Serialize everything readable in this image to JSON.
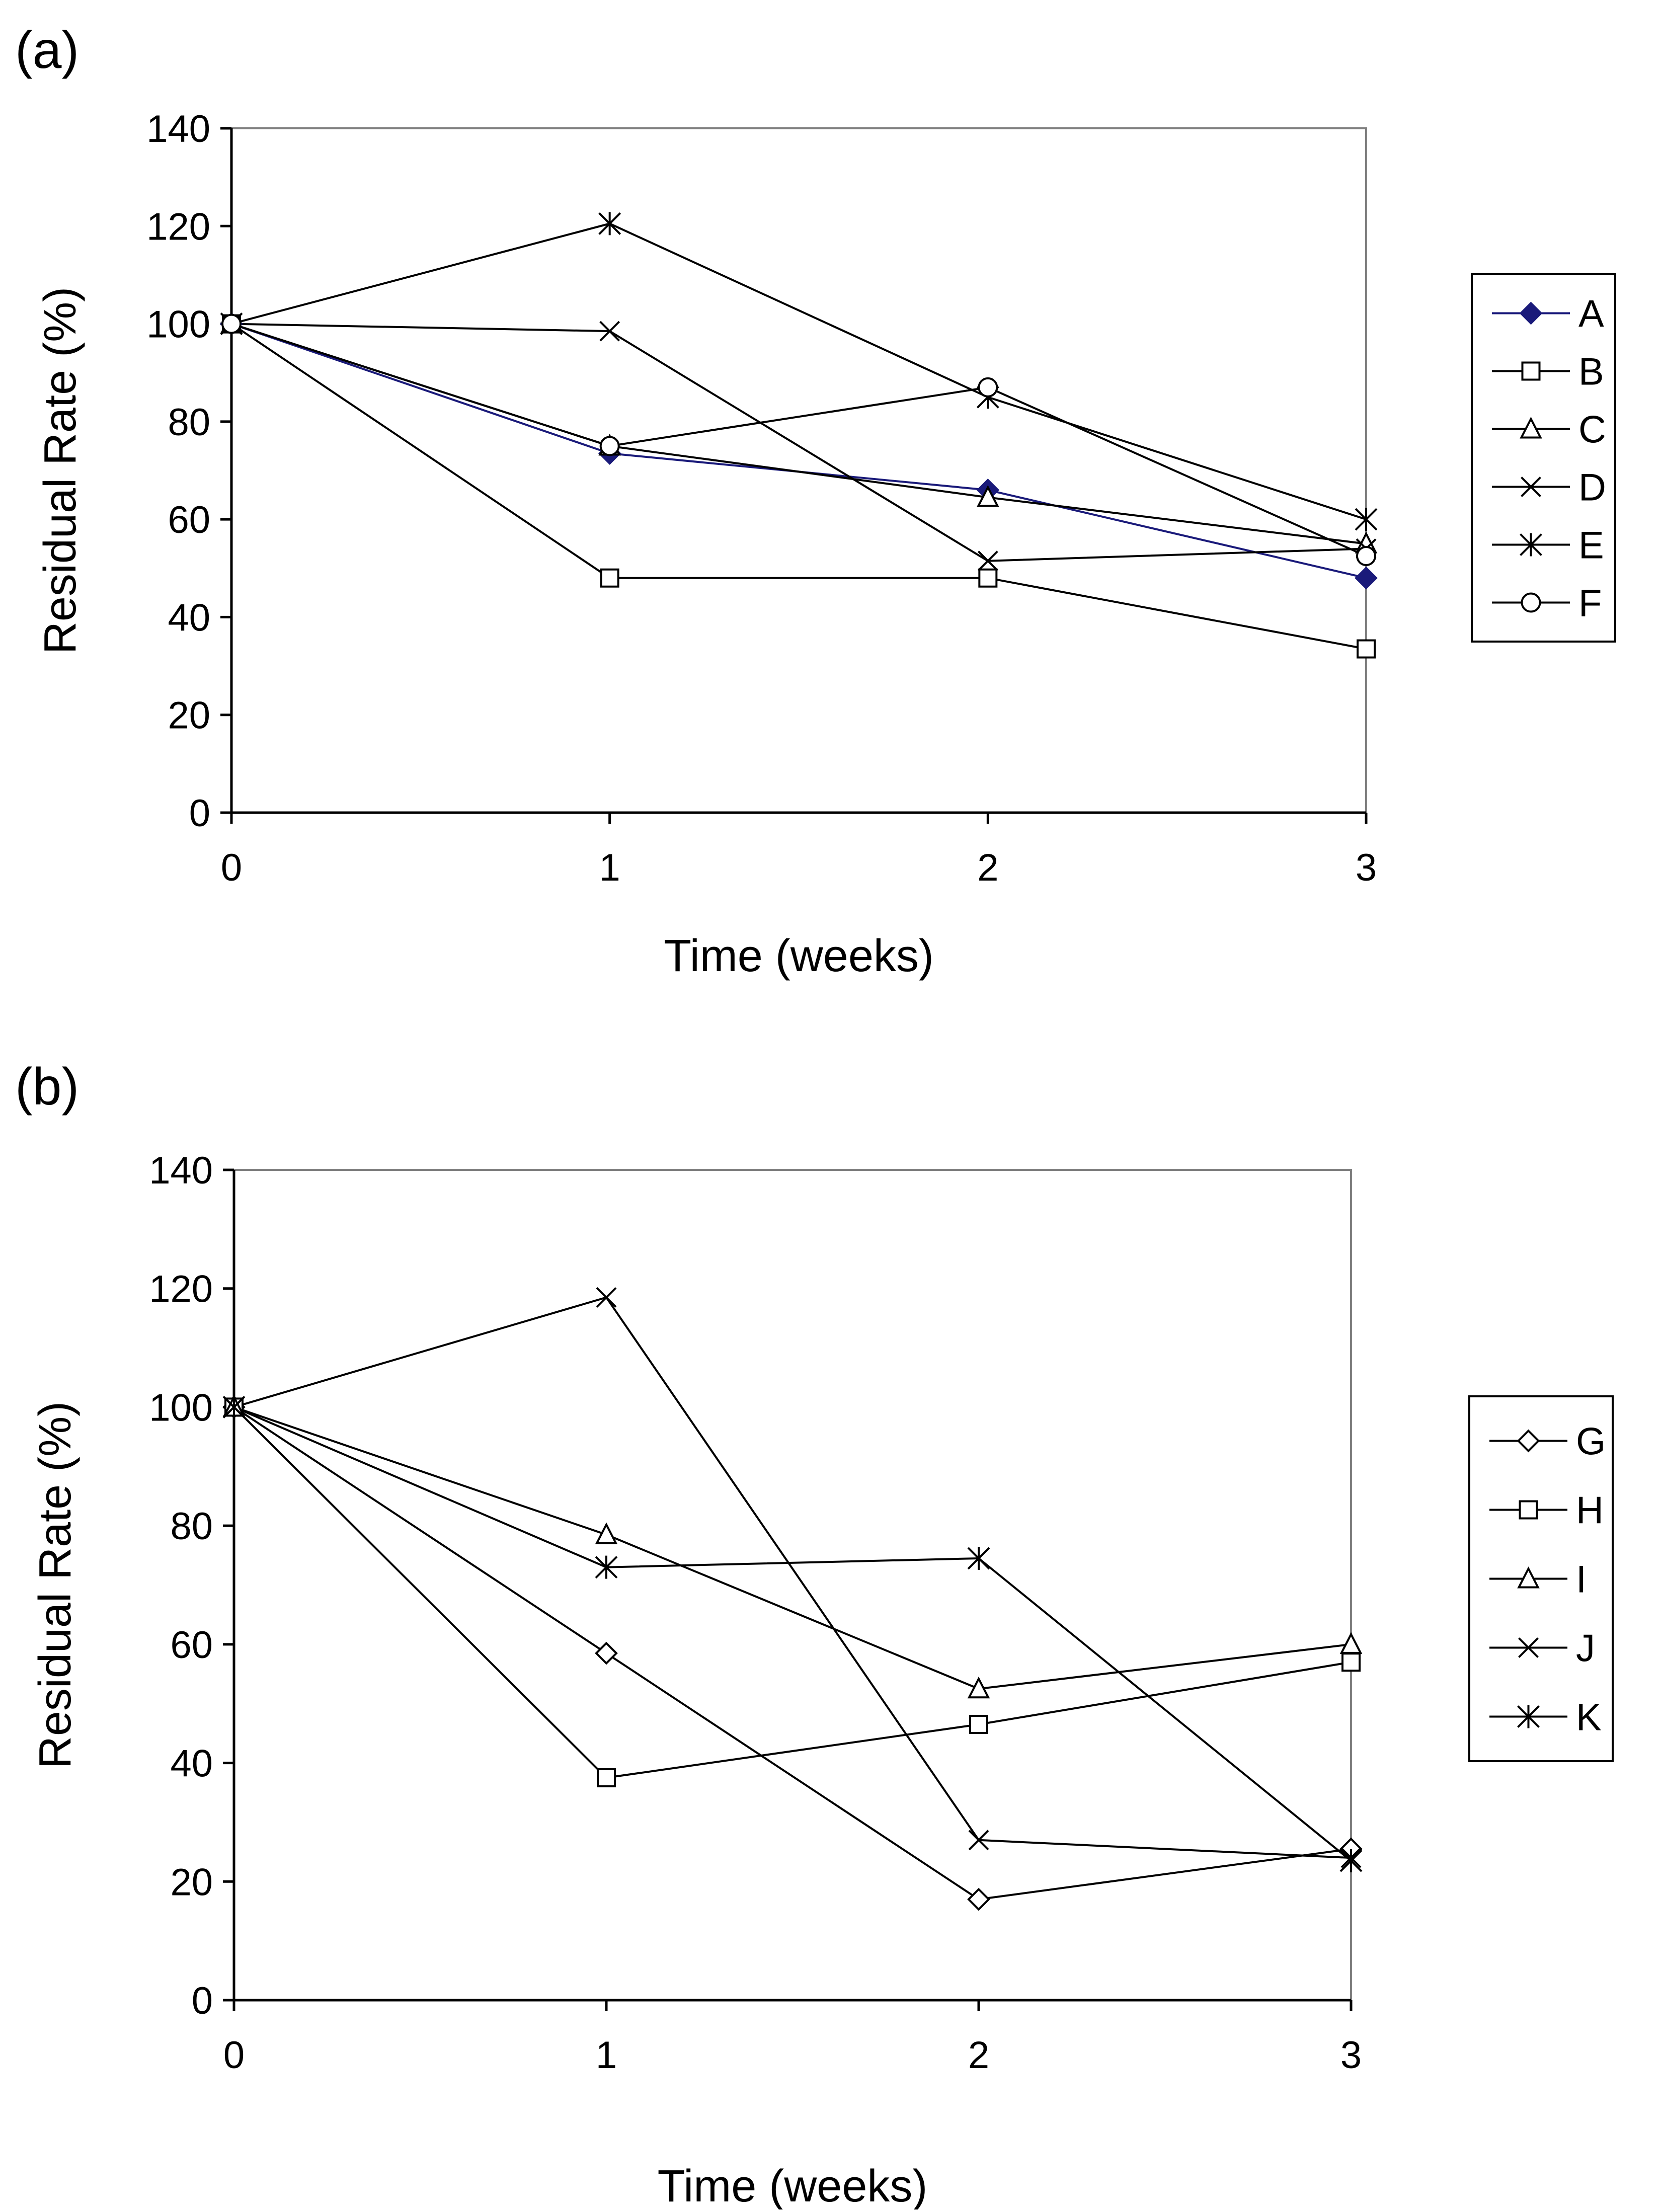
{
  "chart_data": [
    {
      "panel_label": "(a)",
      "type": "line",
      "x": [
        0,
        1,
        2,
        3
      ],
      "xlabel": "Time (weeks)",
      "ylabel": "Residual Rate (%)",
      "xlim": [
        0,
        3
      ],
      "ylim": [
        0,
        140
      ],
      "xticks": [
        "0",
        "1",
        "2",
        "3"
      ],
      "yticks": [
        "0",
        "20",
        "40",
        "60",
        "80",
        "100",
        "120",
        "140"
      ],
      "grid": false,
      "legend_position": "right",
      "series": [
        {
          "name": "A",
          "values": [
            100,
            73.5,
            66,
            48
          ],
          "marker": "diamond-filled",
          "color": "#1a1a7a"
        },
        {
          "name": "B",
          "values": [
            100,
            48,
            48,
            33.5
          ],
          "marker": "square-open",
          "color": "#000000"
        },
        {
          "name": "C",
          "values": [
            100,
            75,
            64.5,
            55
          ],
          "marker": "triangle-open",
          "color": "#000000"
        },
        {
          "name": "D",
          "values": [
            100,
            98.5,
            51.5,
            54
          ],
          "marker": "x",
          "color": "#000000"
        },
        {
          "name": "E",
          "values": [
            100,
            120.5,
            85,
            60
          ],
          "marker": "asterisk",
          "color": "#000000"
        },
        {
          "name": "F",
          "values": [
            100,
            75,
            87,
            52.5
          ],
          "marker": "circle-open",
          "color": "#000000"
        }
      ]
    },
    {
      "panel_label": "(b)",
      "type": "line",
      "x": [
        0,
        1,
        2,
        3
      ],
      "xlabel": "Time (weeks)",
      "ylabel": "Residual Rate (%)",
      "xlim": [
        0,
        3
      ],
      "ylim": [
        0,
        140
      ],
      "xticks": [
        "0",
        "1",
        "2",
        "3"
      ],
      "yticks": [
        "0",
        "20",
        "40",
        "60",
        "80",
        "100",
        "120",
        "140"
      ],
      "grid": false,
      "legend_position": "right",
      "series": [
        {
          "name": "G",
          "values": [
            100,
            58.5,
            17,
            25.5
          ],
          "marker": "diamond-open",
          "color": "#000000"
        },
        {
          "name": "H",
          "values": [
            100,
            37.5,
            46.5,
            57
          ],
          "marker": "square-open",
          "color": "#000000"
        },
        {
          "name": "I",
          "values": [
            100,
            78.5,
            52.5,
            60
          ],
          "marker": "triangle-open",
          "color": "#000000"
        },
        {
          "name": "J",
          "values": [
            100,
            118.5,
            27,
            24
          ],
          "marker": "x",
          "color": "#000000"
        },
        {
          "name": "K",
          "values": [
            100,
            73,
            74.5,
            23.5
          ],
          "marker": "asterisk",
          "color": "#000000"
        }
      ]
    }
  ]
}
